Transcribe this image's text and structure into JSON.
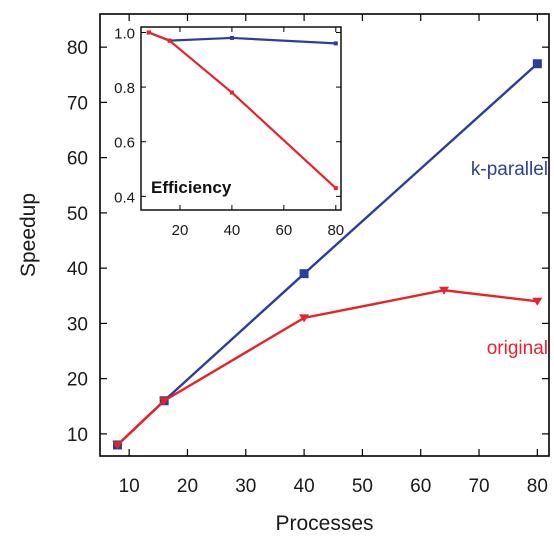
{
  "chart_data": [
    {
      "type": "line",
      "xlabel": "Processes",
      "ylabel": "Speedup",
      "xlim": [
        5,
        82
      ],
      "ylim": [
        6,
        86
      ],
      "xticks": [
        10,
        20,
        30,
        40,
        50,
        60,
        70,
        80
      ],
      "yticks": [
        10,
        20,
        30,
        40,
        50,
        60,
        70,
        80
      ],
      "series": [
        {
          "name": "k-parallel",
          "color": "#2b3f99",
          "marker": "square",
          "x": [
            8,
            16,
            40,
            80
          ],
          "y": [
            8,
            16,
            39,
            77
          ]
        },
        {
          "name": "original",
          "color": "#e8222b",
          "marker": "triangle-down",
          "x": [
            8,
            16,
            40,
            64,
            80
          ],
          "y": [
            8,
            16,
            31,
            36,
            34
          ]
        }
      ]
    },
    {
      "type": "line",
      "title": "Efficiency",
      "xlim": [
        5,
        82
      ],
      "ylim": [
        0.35,
        1.02
      ],
      "xticks": [
        20,
        40,
        60,
        80
      ],
      "yticks": [
        0.4,
        0.6,
        0.8,
        1.0
      ],
      "ytick_labels": [
        "0.4",
        "0.6",
        "0.8",
        "1.0"
      ],
      "series": [
        {
          "color": "#2b3f99",
          "x": [
            8,
            16,
            40,
            80
          ],
          "y": [
            1.0,
            0.97,
            0.98,
            0.96
          ]
        },
        {
          "color": "#e8222b",
          "x": [
            8,
            16,
            40,
            80
          ],
          "y": [
            1.0,
            0.97,
            0.78,
            0.43
          ]
        }
      ]
    }
  ]
}
